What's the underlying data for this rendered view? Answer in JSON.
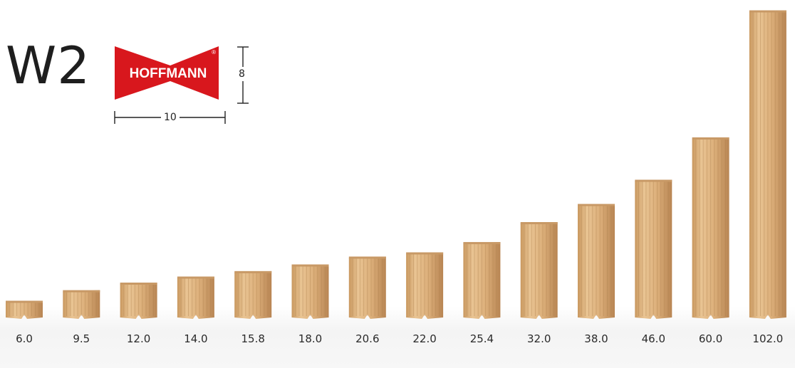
{
  "header": {
    "model": "W2",
    "brand": "HOFFMANN",
    "registered_mark": "®",
    "width_value": "10",
    "height_value": "8"
  },
  "colors": {
    "brand_red": "#d8171d",
    "wood_light": "#e6be8c",
    "wood_dark": "#b98a57"
  },
  "dowels": [
    {
      "size": "6.0",
      "length": 6.0
    },
    {
      "size": "9.5",
      "length": 9.5
    },
    {
      "size": "12.0",
      "length": 12.0
    },
    {
      "size": "14.0",
      "length": 14.0
    },
    {
      "size": "15.8",
      "length": 15.8
    },
    {
      "size": "18.0",
      "length": 18.0
    },
    {
      "size": "20.6",
      "length": 20.6
    },
    {
      "size": "22.0",
      "length": 22.0
    },
    {
      "size": "25.4",
      "length": 25.4
    },
    {
      "size": "32.0",
      "length": 32.0
    },
    {
      "size": "38.0",
      "length": 38.0
    },
    {
      "size": "46.0",
      "length": 46.0
    },
    {
      "size": "60.0",
      "length": 60.0
    },
    {
      "size": "102.0",
      "length": 102.0
    }
  ]
}
